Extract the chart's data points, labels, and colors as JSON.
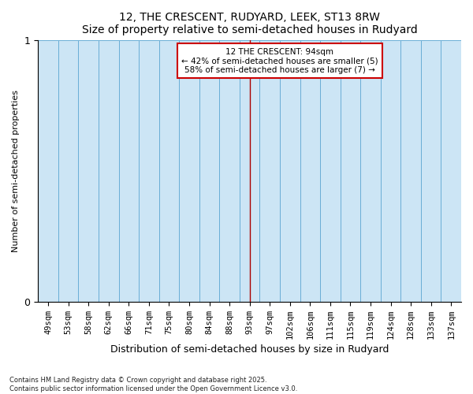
{
  "title": "12, THE CRESCENT, RUDYARD, LEEK, ST13 8RW",
  "subtitle": "Size of property relative to semi-detached houses in Rudyard",
  "xlabel": "Distribution of semi-detached houses by size in Rudyard",
  "ylabel": "Number of semi-detached properties",
  "categories": [
    "49sqm",
    "53sqm",
    "58sqm",
    "62sqm",
    "66sqm",
    "71sqm",
    "75sqm",
    "80sqm",
    "84sqm",
    "88sqm",
    "93sqm",
    "97sqm",
    "102sqm",
    "106sqm",
    "111sqm",
    "115sqm",
    "119sqm",
    "124sqm",
    "128sqm",
    "133sqm",
    "137sqm"
  ],
  "values": [
    1,
    1,
    1,
    1,
    1,
    1,
    1,
    1,
    1,
    1,
    1,
    1,
    1,
    1,
    1,
    1,
    1,
    1,
    1,
    1,
    1
  ],
  "bar_color": "#cce5f5",
  "bar_edge_color": "#6aaed6",
  "property_line_x": 10,
  "property_sqm": 94,
  "annotation_line1": "12 THE CRESCENT: 94sqm",
  "annotation_line2": "← 42% of semi-detached houses are smaller (5)",
  "annotation_line3": "58% of semi-detached houses are larger (7) →",
  "annotation_box_color": "#ffffff",
  "annotation_box_edge_color": "#cc0000",
  "vline_color": "#aa0000",
  "footnote1": "Contains HM Land Registry data © Crown copyright and database right 2025.",
  "footnote2": "Contains public sector information licensed under the Open Government Licence v3.0.",
  "ylim": [
    0,
    1
  ],
  "yticks": [
    0,
    1
  ],
  "background_color": "#ffffff",
  "title_fontsize": 10,
  "subtitle_fontsize": 9,
  "figwidth": 6.0,
  "figheight": 5.0
}
